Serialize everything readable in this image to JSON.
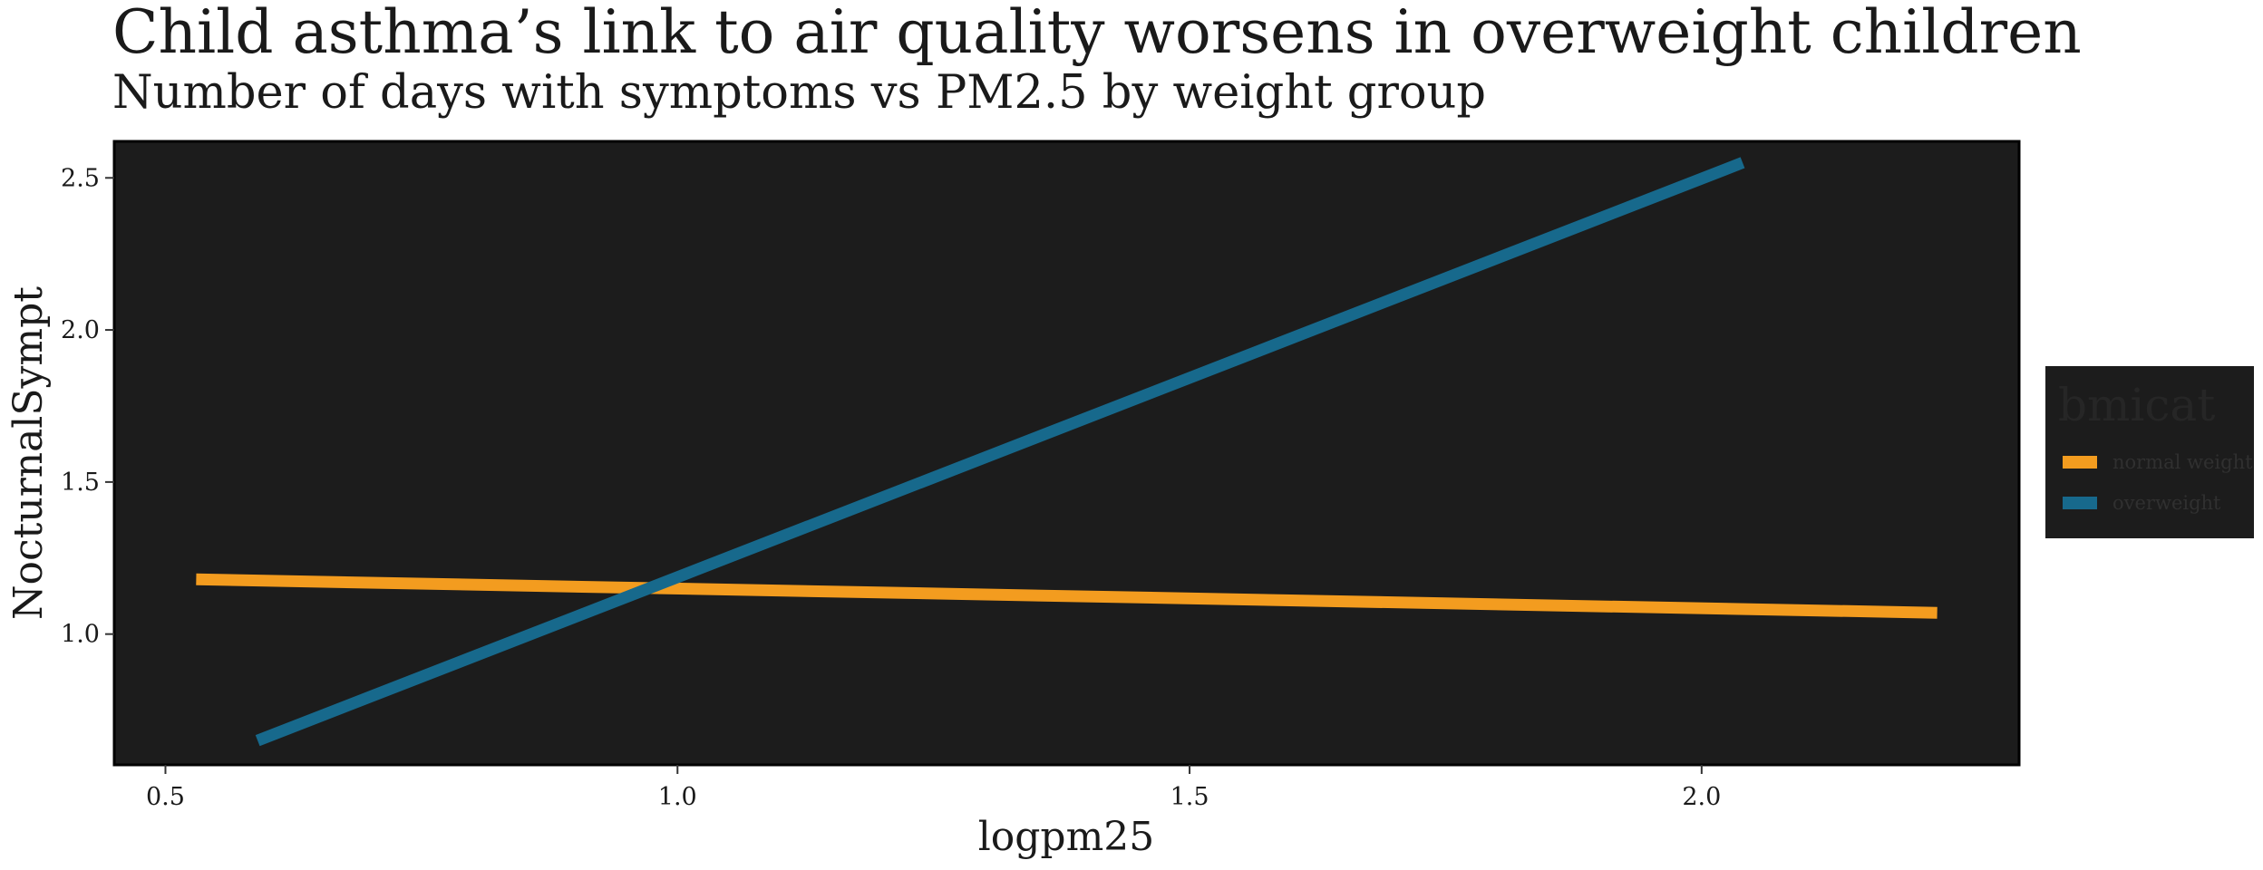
{
  "chart_data": {
    "type": "line",
    "title": "Child asthma’s link to air quality worsens in overweight children",
    "subtitle": "Number of days with symptoms vs PM2.5 by weight group",
    "xlabel": "logpm25",
    "ylabel": "NocturnalSympt",
    "xlim": [
      0.45,
      2.31
    ],
    "ylim": [
      0.57,
      2.62
    ],
    "x_ticks": [
      0.5,
      1.0,
      1.5,
      2.0
    ],
    "x_tick_labels": [
      "0.5",
      "1.0",
      "1.5",
      "2.0"
    ],
    "y_ticks": [
      1.0,
      1.5,
      2.0,
      2.5
    ],
    "y_tick_labels": [
      "1.0",
      "1.5",
      "2.0",
      "2.5"
    ],
    "grid": false,
    "panel_background": "#1c1c1c",
    "legend": {
      "title": "bmicat",
      "position": "right"
    },
    "series": [
      {
        "name": "normal weight",
        "color": "#f39c1f",
        "x": [
          0.53,
          2.23
        ],
        "y": [
          1.18,
          1.07
        ]
      },
      {
        "name": "overweight",
        "color": "#17698c",
        "x": [
          0.59,
          2.04
        ],
        "y": [
          0.65,
          2.55
        ]
      }
    ]
  }
}
